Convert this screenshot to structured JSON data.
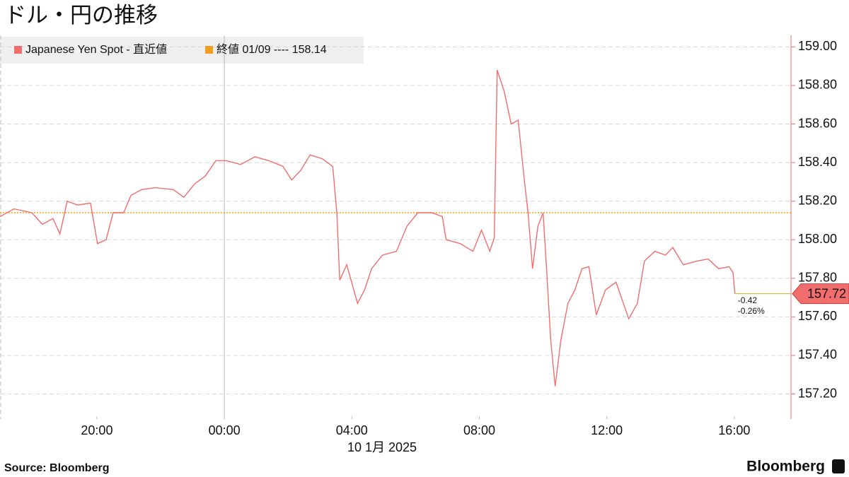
{
  "chart_data": {
    "type": "line",
    "title": "ドル・円の推移",
    "source": "Source:  Bloomberg",
    "brand": "Bloomberg",
    "x_label": "10 1月 2025",
    "xlim": [
      -7.04,
      17.78
    ],
    "xticks": [
      {
        "value": -4,
        "label": "20:00"
      },
      {
        "value": 0,
        "label": "00:00"
      },
      {
        "value": 4,
        "label": "04:00"
      },
      {
        "value": 8,
        "label": "08:00"
      },
      {
        "value": 12,
        "label": "12:00"
      },
      {
        "value": 16,
        "label": "16:00"
      }
    ],
    "ylim": [
      157.07,
      159.06
    ],
    "yticks": [
      {
        "value": 157.2,
        "label": "157.20"
      },
      {
        "value": 157.4,
        "label": "157.40"
      },
      {
        "value": 157.6,
        "label": "157.60"
      },
      {
        "value": 157.8,
        "label": "157.80"
      },
      {
        "value": 158.0,
        "label": "158.00"
      },
      {
        "value": 158.2,
        "label": "158.20"
      },
      {
        "value": 158.4,
        "label": "158.40"
      },
      {
        "value": 158.6,
        "label": "158.60"
      },
      {
        "value": 158.8,
        "label": "158.80"
      },
      {
        "value": 159.0,
        "label": "159.00"
      }
    ],
    "grid": true,
    "x": [
      -7.04,
      -6.6,
      -6.04,
      -5.71,
      -5.38,
      -5.16,
      -4.93,
      -4.6,
      -4.2,
      -3.98,
      -3.71,
      -3.49,
      -3.16,
      -2.93,
      -2.6,
      -2.16,
      -1.6,
      -1.27,
      -0.93,
      -0.6,
      -0.27,
      0.07,
      0.51,
      0.96,
      1.4,
      1.84,
      2.11,
      2.4,
      2.69,
      3.07,
      3.4,
      3.53,
      3.62,
      3.84,
      4.18,
      4.4,
      4.62,
      4.96,
      5.4,
      5.73,
      6.07,
      6.51,
      6.84,
      6.96,
      7.4,
      7.8,
      8.07,
      8.33,
      8.47,
      8.56,
      8.78,
      9.0,
      9.22,
      9.4,
      9.53,
      9.67,
      9.84,
      10.0,
      10.11,
      10.24,
      10.38,
      10.56,
      10.78,
      11.0,
      11.22,
      11.44,
      11.67,
      11.96,
      12.29,
      12.69,
      12.96,
      13.18,
      13.51,
      13.84,
      14.07,
      14.4,
      14.84,
      15.18,
      15.51,
      15.84,
      15.96,
      16.02
    ],
    "series": [
      {
        "name": "Japanese Yen Spot - 直近値",
        "color": "#f26d6d",
        "values": [
          158.12,
          158.16,
          158.14,
          158.08,
          158.11,
          158.03,
          158.2,
          158.18,
          158.19,
          157.98,
          158.0,
          158.14,
          158.14,
          158.23,
          158.26,
          158.27,
          158.26,
          158.22,
          158.29,
          158.33,
          158.41,
          158.41,
          158.39,
          158.43,
          158.41,
          158.38,
          158.31,
          158.36,
          158.44,
          158.42,
          158.38,
          158.14,
          157.79,
          157.87,
          157.67,
          157.74,
          157.85,
          157.92,
          157.94,
          158.07,
          158.14,
          158.14,
          158.12,
          158.0,
          157.98,
          157.94,
          158.05,
          157.94,
          158.01,
          158.88,
          158.77,
          158.6,
          158.62,
          158.33,
          158.14,
          157.85,
          158.07,
          158.14,
          157.85,
          157.48,
          157.24,
          157.48,
          157.67,
          157.74,
          157.85,
          157.86,
          157.61,
          157.74,
          157.78,
          157.59,
          157.67,
          157.89,
          157.94,
          157.92,
          157.96,
          157.87,
          157.89,
          157.9,
          157.85,
          157.86,
          157.83,
          157.72
        ]
      }
    ],
    "reference": {
      "label": "終値 01/09 ---- 158.14",
      "value": 158.14,
      "color": "#f0a020"
    },
    "annotations": [
      "-0.42",
      "-0.26%"
    ]
  }
}
